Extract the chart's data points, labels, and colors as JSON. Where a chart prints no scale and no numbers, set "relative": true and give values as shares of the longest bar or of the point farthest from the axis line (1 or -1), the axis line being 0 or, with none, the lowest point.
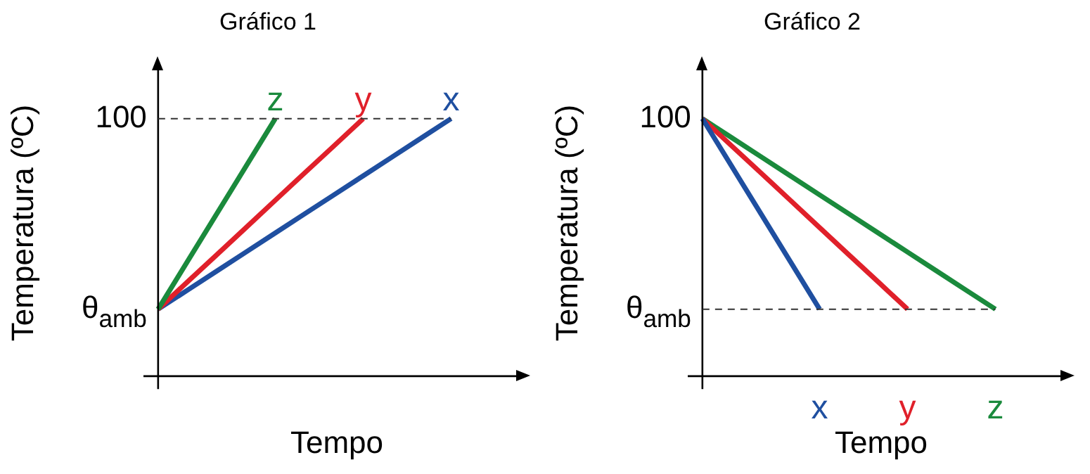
{
  "chart_data": [
    {
      "type": "line",
      "title": "Gráfico 1",
      "xlabel": "Tempo",
      "ylabel": "Temperatura (ºC)",
      "relative": true,
      "categories": [
        null,
        null,
        null,
        null,
        null,
        null,
        null,
        null,
        null,
        null,
        null
      ],
      "annotations": [
        "θ$_{amb}$",
        "100"
      ],
      "ref_lines": [
        {
          "axis": "y",
          "value": 1,
          "line_style": "dashed",
          "color": "#333333"
        }
      ],
      "series": [
        {
          "name": "z",
          "color": "#1a8a3c",
          "values": [
            0.26,
            0.445,
            0.63,
            0.815,
            1,
            null,
            null,
            null,
            null,
            null,
            null
          ]
        },
        {
          "name": "y",
          "color": "#e0202a",
          "values": [
            0.26,
            0.366,
            0.471,
            0.577,
            0.683,
            0.789,
            0.894,
            1,
            null,
            null,
            null
          ]
        },
        {
          "name": "x",
          "color": "#1f4fa0",
          "values": [
            0.26,
            0.334,
            0.408,
            0.482,
            0.556,
            0.63,
            0.704,
            0.778,
            0.852,
            0.926,
            1
          ]
        }
      ]
    },
    {
      "type": "line",
      "title": "Gráfico 2",
      "xlabel": "Tempo",
      "ylabel": "Temperatura (ºC)",
      "relative": true,
      "categories": [
        null,
        null,
        null,
        null,
        null,
        null,
        null,
        null,
        null,
        null,
        null
      ],
      "annotations": [
        "θ$_{amb}$",
        "100"
      ],
      "ref_lines": [
        {
          "axis": "y",
          "value": 0.26,
          "line_style": "dashed",
          "color": "#333333"
        }
      ],
      "series": [
        {
          "name": "x",
          "color": "#1f4fa0",
          "values": [
            1,
            0.815,
            0.63,
            0.445,
            0.26,
            null,
            null,
            null,
            null,
            null,
            null
          ]
        },
        {
          "name": "y",
          "color": "#e0202a",
          "values": [
            1,
            0.894,
            0.789,
            0.683,
            0.577,
            0.471,
            0.366,
            0.26,
            null,
            null,
            null
          ]
        },
        {
          "name": "z",
          "color": "#1a8a3c",
          "values": [
            1,
            0.926,
            0.852,
            0.778,
            0.704,
            0.63,
            0.556,
            0.482,
            0.408,
            0.334,
            0.26
          ]
        }
      ]
    }
  ]
}
